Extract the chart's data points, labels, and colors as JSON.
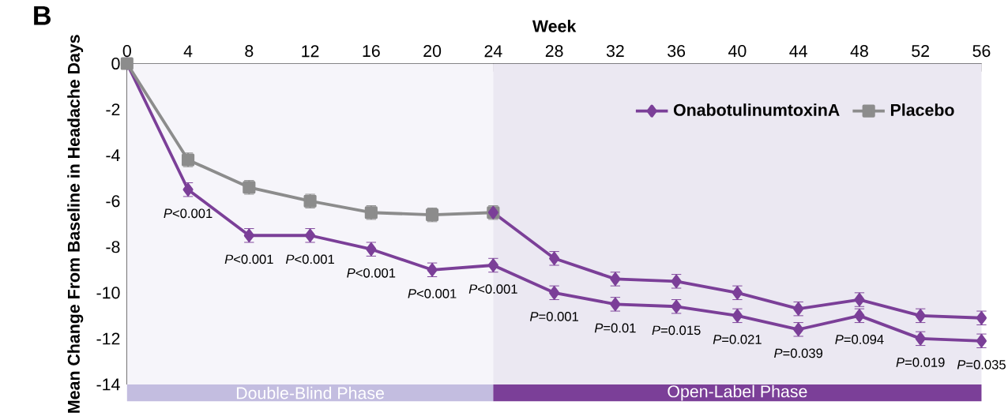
{
  "chart_data": {
    "type": "line",
    "title": "B",
    "xlabel": "Week",
    "ylabel": "Mean Change From Baseline in Headache Days",
    "xlim": [
      0,
      56
    ],
    "xticks": [
      0,
      4,
      8,
      12,
      16,
      20,
      24,
      28,
      32,
      36,
      40,
      44,
      48,
      52,
      56
    ],
    "ylim": [
      -14,
      0
    ],
    "yticks": [
      -14,
      -12,
      -10,
      -8,
      -6,
      -4,
      -2,
      0
    ],
    "legend": "top right",
    "grid": false,
    "series": [
      {
        "name": "OnabotulinumtoxinA",
        "color": "#7b3f98",
        "marker": "diamond",
        "x": [
          0,
          4,
          8,
          12,
          16,
          20,
          24,
          28,
          32,
          36,
          40,
          44,
          48,
          52,
          56
        ],
        "values": [
          0,
          -5.5,
          -7.5,
          -7.5,
          -8.1,
          -9.0,
          -8.8,
          -10.0,
          -10.5,
          -10.6,
          -11.0,
          -11.6,
          -11.0,
          -12.0,
          -12.1
        ],
        "errors": [
          null,
          0.3,
          0.3,
          0.3,
          0.3,
          0.3,
          0.3,
          0.3,
          0.3,
          0.3,
          0.3,
          0.3,
          0.3,
          0.3,
          0.3
        ]
      },
      {
        "name": "Placebo",
        "color": "#8c8c8c",
        "marker": "square",
        "x": [
          0,
          4,
          8,
          12,
          16,
          20,
          24
        ],
        "values": [
          0,
          -4.2,
          -5.4,
          -6.0,
          -6.5,
          -6.6,
          -6.5
        ],
        "errors": [
          null,
          0.3,
          0.3,
          0.3,
          0.3,
          0.3,
          0.3
        ]
      },
      {
        "color": "#7b3f98",
        "marker": "diamond",
        "x": [
          24,
          28,
          32,
          36,
          40,
          44,
          48,
          52,
          56
        ],
        "values": [
          -6.5,
          -8.5,
          -9.4,
          -9.5,
          -10.0,
          -10.7,
          -10.3,
          -11.0,
          -11.1
        ],
        "errors": [
          null,
          0.3,
          0.3,
          0.3,
          0.3,
          0.3,
          0.3,
          0.3,
          0.3
        ]
      }
    ],
    "bands": [
      {
        "axis": "x",
        "from": 0,
        "to": 24,
        "label": "Double-Blind Phase",
        "color": "#f6f5fa"
      },
      {
        "axis": "x",
        "from": 24,
        "to": 56,
        "label": "Open-Label Phase",
        "color": "#ebe8f2"
      }
    ],
    "annotations": [
      {
        "text": "*P*<0.001",
        "x": 4,
        "y": -5.5
      },
      {
        "text": "*P*<0.001",
        "x": 8,
        "y": -7.5
      },
      {
        "text": "*P*<0.001",
        "x": 12,
        "y": -7.5
      },
      {
        "text": "*P*<0.001",
        "x": 16,
        "y": -8.1
      },
      {
        "text": "*P*<0.001",
        "x": 20,
        "y": -9.0
      },
      {
        "text": "*P*<0.001",
        "x": 24,
        "y": -8.8
      },
      {
        "text": "*P*=0.001",
        "x": 28,
        "y": -10.0
      },
      {
        "text": "*P*=0.01",
        "x": 32,
        "y": -10.5
      },
      {
        "text": "*P*=0.015",
        "x": 36,
        "y": -10.6
      },
      {
        "text": "*P*=0.021",
        "x": 40,
        "y": -11.0
      },
      {
        "text": "*P*=0.039",
        "x": 44,
        "y": -11.6
      },
      {
        "text": "*P*=0.094",
        "x": 48,
        "y": -11.0
      },
      {
        "text": "*P*=0.019",
        "x": 52,
        "y": -12.0
      },
      {
        "text": "*P*=0.035",
        "x": 56,
        "y": -12.1
      }
    ]
  }
}
